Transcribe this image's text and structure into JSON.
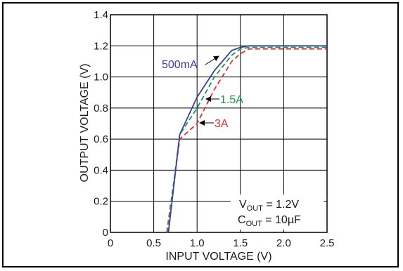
{
  "chart_data": {
    "type": "line",
    "xlabel": "INPUT VOLTAGE (V)",
    "ylabel": "OUTPUT VOLTAGE (V)",
    "xlim": [
      0,
      2.5
    ],
    "ylim": [
      0,
      1.4
    ],
    "grid": true,
    "x_ticks": [
      "0",
      "0.5",
      "1.0",
      "1.5",
      "2.0",
      "2.5"
    ],
    "y_ticks": [
      "0",
      "0.2",
      "0.4",
      "0.6",
      "0.8",
      "1.0",
      "1.2",
      "1.4"
    ],
    "series": [
      {
        "name": "500mA",
        "color": "#3b3f9c",
        "style": "solid",
        "points": [
          [
            0.67,
            0
          ],
          [
            0.8,
            0.63
          ],
          [
            1.0,
            0.87
          ],
          [
            1.2,
            1.04
          ],
          [
            1.4,
            1.17
          ],
          [
            1.5,
            1.19
          ],
          [
            1.6,
            1.2
          ],
          [
            2.0,
            1.2
          ],
          [
            2.5,
            1.2
          ]
        ]
      },
      {
        "name": "1.5A",
        "color": "#1a9a4a",
        "style": "dashed",
        "points": [
          [
            0.66,
            0
          ],
          [
            0.8,
            0.63
          ],
          [
            1.0,
            0.8
          ],
          [
            1.2,
            1.0
          ],
          [
            1.4,
            1.14
          ],
          [
            1.5,
            1.18
          ],
          [
            1.6,
            1.19
          ],
          [
            2.0,
            1.19
          ],
          [
            2.5,
            1.19
          ]
        ]
      },
      {
        "name": "3A",
        "color": "#e0303a",
        "style": "dashed",
        "points": [
          [
            0.65,
            0
          ],
          [
            0.8,
            0.6
          ],
          [
            1.0,
            0.7
          ],
          [
            1.2,
            0.92
          ],
          [
            1.4,
            1.1
          ],
          [
            1.5,
            1.15
          ],
          [
            1.6,
            1.18
          ],
          [
            2.0,
            1.18
          ],
          [
            2.5,
            1.18
          ]
        ]
      }
    ],
    "annotations": {
      "vout_label": "V",
      "vout_sub": "OUT",
      "vout_value": " = 1.2V",
      "cout_label": "C",
      "cout_sub": "OUT",
      "cout_value": " = 10µF"
    }
  }
}
